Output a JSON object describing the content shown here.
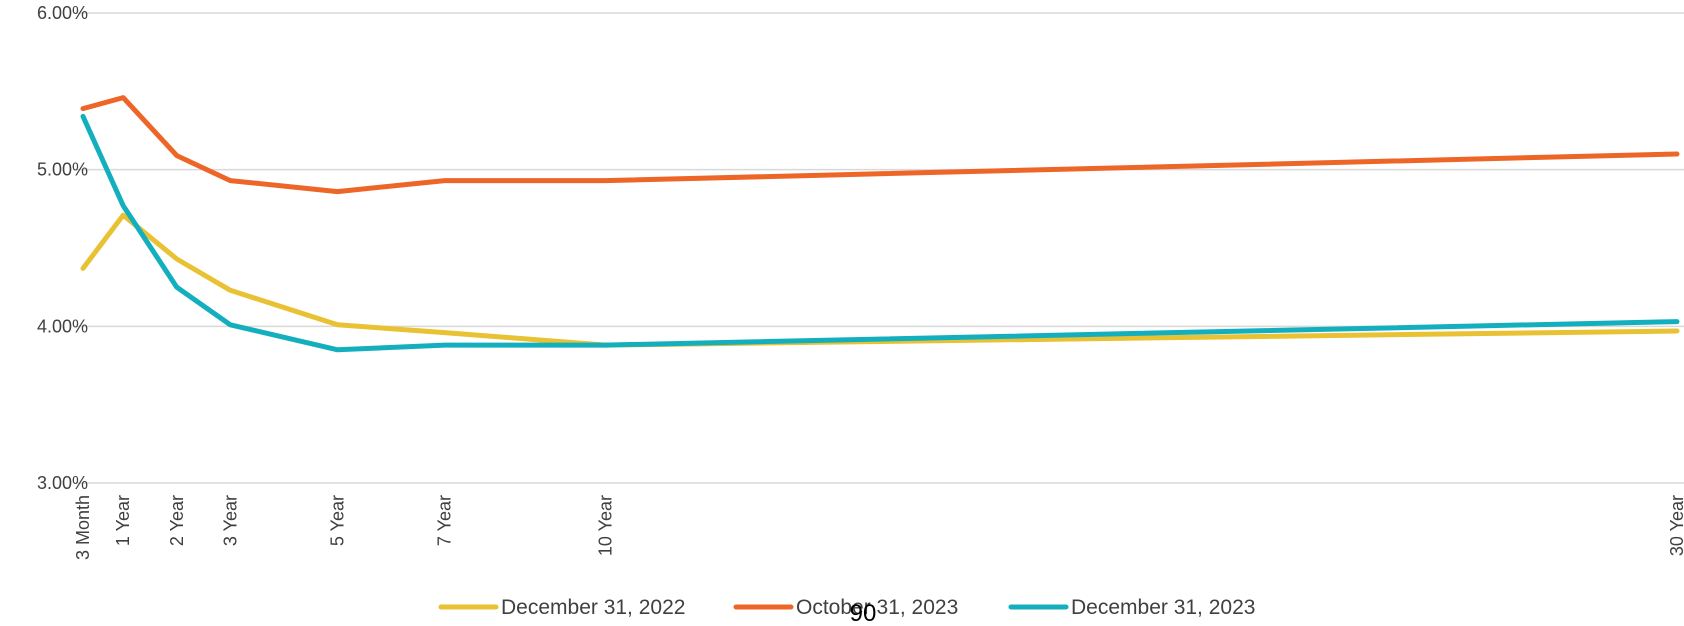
{
  "chart_data": {
    "type": "line",
    "title": "",
    "xlabel": "",
    "ylabel": "",
    "x_tenor_years": [
      0.25,
      1,
      2,
      3,
      5,
      7,
      10,
      30
    ],
    "categories": [
      "3 Month",
      "1 Year",
      "2 Year",
      "3 Year",
      "5 Year",
      "7 Year",
      "10 Year",
      "30 Year"
    ],
    "y_ticks": [
      "3.00%",
      "4.00%",
      "5.00%",
      "6.00%"
    ],
    "ylim": [
      3.0,
      6.0
    ],
    "grid": true,
    "legend_position": "bottom",
    "series": [
      {
        "name": "December 31, 2022",
        "color": "#E8C233",
        "values": [
          4.37,
          4.71,
          4.43,
          4.23,
          4.01,
          3.96,
          3.88,
          3.97
        ]
      },
      {
        "name": "October 31, 2023",
        "color": "#EE6627",
        "values": [
          5.39,
          5.46,
          5.09,
          4.93,
          4.86,
          4.93,
          4.93,
          5.1
        ]
      },
      {
        "name": "December 31, 2023",
        "color": "#14AFBE",
        "values": [
          5.34,
          4.77,
          4.25,
          4.01,
          3.85,
          3.88,
          3.88,
          4.03
        ]
      }
    ]
  },
  "page_number": "90"
}
